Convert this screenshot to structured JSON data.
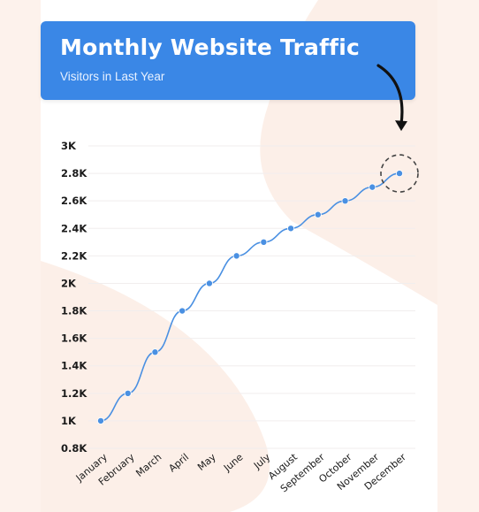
{
  "header": {
    "title": "Monthly Website Traffic",
    "subtitle": "Visitors in Last Year"
  },
  "colors": {
    "accent": "#3a87e6",
    "line": "#4a90e2",
    "background_shape": "#fcefe8",
    "text": "#1a1a1a"
  },
  "chart_data": {
    "type": "line",
    "title": "Monthly Website Traffic",
    "subtitle": "Visitors in Last Year",
    "xlabel": "",
    "ylabel": "",
    "categories": [
      "January",
      "February",
      "March",
      "April",
      "May",
      "June",
      "July",
      "August",
      "September",
      "October",
      "November",
      "December"
    ],
    "values": [
      1000,
      1200,
      1500,
      1800,
      2000,
      2200,
      2300,
      2400,
      2500,
      2600,
      2700,
      2800
    ],
    "ylim": [
      800,
      3000
    ],
    "yticks": [
      800,
      1000,
      1200,
      1400,
      1600,
      1800,
      2000,
      2200,
      2400,
      2600,
      2800,
      3000
    ],
    "ytick_labels": [
      "0.8K",
      "1K",
      "1.2K",
      "1.4K",
      "1.6K",
      "1.8K",
      "2K",
      "2.2K",
      "2.4K",
      "2.6K",
      "2.8K",
      "3K"
    ],
    "grid": true,
    "legend": "none",
    "highlight": {
      "category": "December",
      "style": "dashed-circle-with-arrow"
    }
  }
}
